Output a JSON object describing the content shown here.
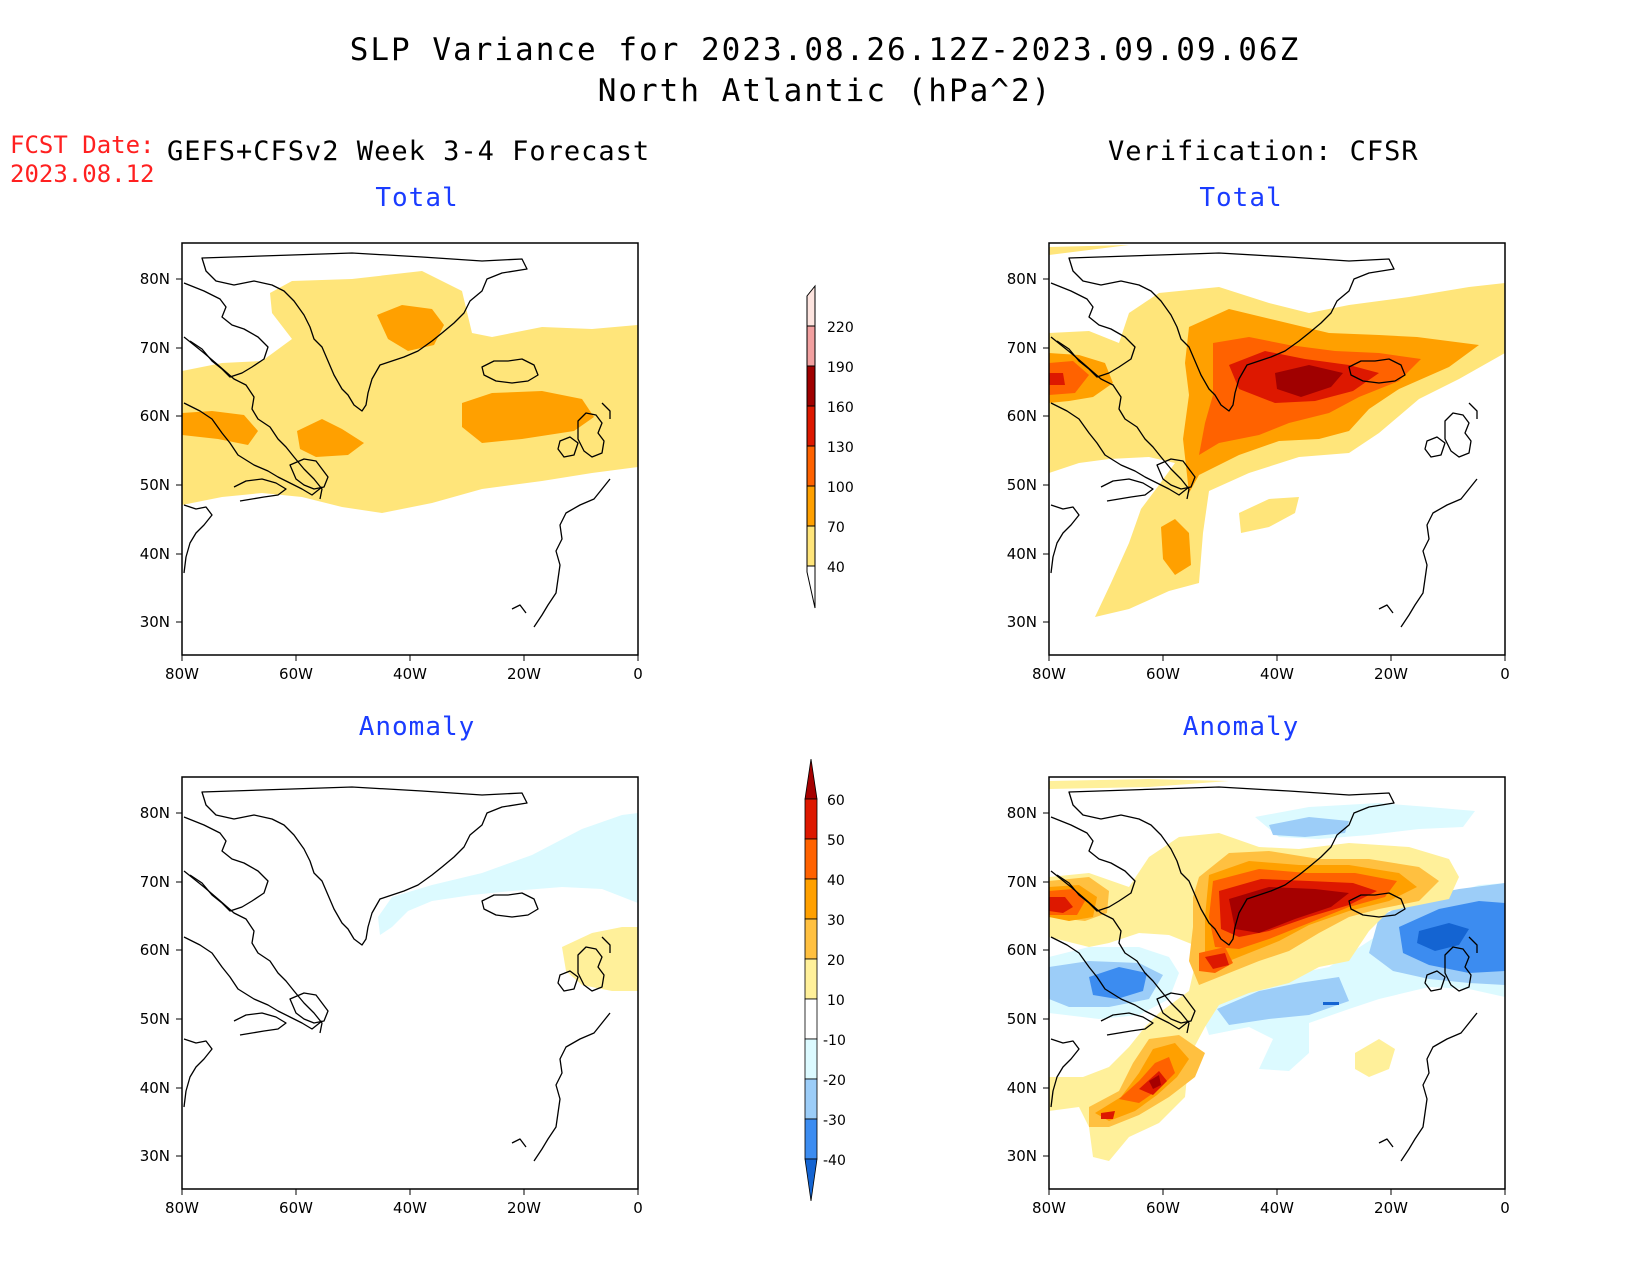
{
  "header": {
    "title_line1": "SLP Variance for 2023.08.26.12Z-2023.09.09.06Z",
    "title_line2": "North Atlantic (hPa^2)",
    "fcst_label": "FCST Date:",
    "fcst_date": "2023.08.12",
    "left_column_title": "GEFS+CFSv2 Week 3-4 Forecast",
    "right_column_title": "Verification: CFSR"
  },
  "panels": {
    "forecast_total": {
      "subtitle": "Total"
    },
    "verification_total": {
      "subtitle": "Total"
    },
    "forecast_anomaly": {
      "subtitle": "Anomaly"
    },
    "verification_anomaly": {
      "subtitle": "Anomaly"
    }
  },
  "map_axes": {
    "lon_ticks": [
      "80W",
      "60W",
      "40W",
      "20W",
      "0"
    ],
    "lat_ticks": [
      "80N",
      "70N",
      "60N",
      "50N",
      "40N",
      "30N"
    ],
    "lon_range": [
      -80,
      0
    ],
    "lat_range": [
      25,
      85
    ]
  },
  "colorbars": {
    "total": {
      "labels": [
        "220",
        "190",
        "160",
        "130",
        "100",
        "70",
        "40"
      ],
      "colors": [
        "#fde4df",
        "#f2a0a0",
        "#a00000",
        "#dd1800",
        "#ff6200",
        "#ffa000",
        "#ffe57a"
      ]
    },
    "anomaly": {
      "labels": [
        "60",
        "50",
        "40",
        "30",
        "20",
        "10",
        "-10",
        "-20",
        "-30",
        "-40"
      ],
      "colors": [
        "#a50000",
        "#dd1800",
        "#ff6200",
        "#ffa000",
        "#ffc040",
        "#fff09a",
        "#ffffff",
        "#dcfaff",
        "#9ccdf8",
        "#3c8cf0",
        "#1464d2"
      ]
    }
  }
}
